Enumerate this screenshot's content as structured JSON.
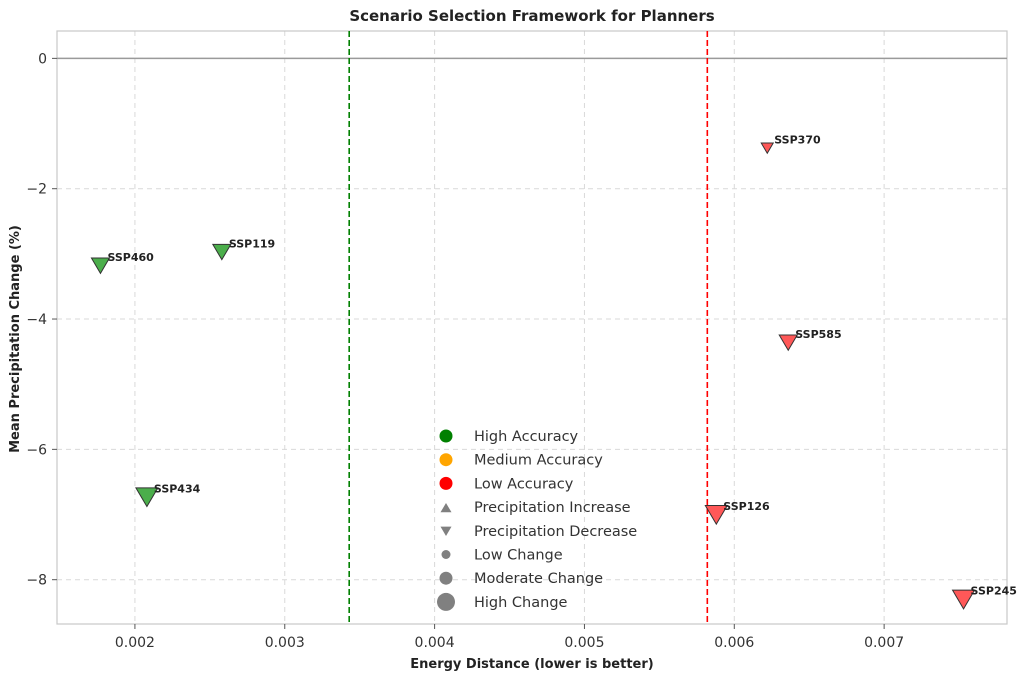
{
  "chart_data": {
    "type": "scatter",
    "title": "Scenario Selection Framework for Planners",
    "xlabel": "Energy Distance (lower is better)",
    "ylabel": "Mean Precipitation Change (%)",
    "xlim": [
      0.00148,
      0.00782
    ],
    "ylim": [
      -8.68,
      0.42
    ],
    "x_ticks": [
      0.002,
      0.003,
      0.004,
      0.005,
      0.006,
      0.007
    ],
    "x_tick_labels": [
      "0.002",
      "0.003",
      "0.004",
      "0.005",
      "0.006",
      "0.007"
    ],
    "y_ticks": [
      0,
      -2,
      -4,
      -6,
      -8
    ],
    "y_tick_labels": [
      "0",
      "−2",
      "−4",
      "−6",
      "−8"
    ],
    "grid": true,
    "zero_line": 0,
    "thresholds": [
      {
        "name": "high-accuracy-threshold",
        "x": 0.00343,
        "color": "#008000"
      },
      {
        "name": "low-accuracy-threshold",
        "x": 0.00582,
        "color": "#ff0000"
      }
    ],
    "points": [
      {
        "label": "SSP460",
        "x": 0.00177,
        "y": -3.17,
        "accuracy": "high",
        "direction": "decrease",
        "change": "moderate",
        "color": "#2ca02c"
      },
      {
        "label": "SSP119",
        "x": 0.00258,
        "y": -2.96,
        "accuracy": "high",
        "direction": "decrease",
        "change": "moderate",
        "color": "#2ca02c"
      },
      {
        "label": "SSP434",
        "x": 0.00208,
        "y": -6.72,
        "accuracy": "high",
        "direction": "decrease",
        "change": "high",
        "color": "#2ca02c"
      },
      {
        "label": "SSP370",
        "x": 0.00622,
        "y": -1.37,
        "accuracy": "low",
        "direction": "decrease",
        "change": "low",
        "color": "#ff3b3b"
      },
      {
        "label": "SSP585",
        "x": 0.00636,
        "y": -4.35,
        "accuracy": "low",
        "direction": "decrease",
        "change": "moderate",
        "color": "#ff3b3b"
      },
      {
        "label": "SSP126",
        "x": 0.00588,
        "y": -6.99,
        "accuracy": "low",
        "direction": "decrease",
        "change": "high",
        "color": "#ff3b3b"
      },
      {
        "label": "SSP245",
        "x": 0.00753,
        "y": -8.29,
        "accuracy": "low",
        "direction": "decrease",
        "change": "high",
        "color": "#ff3b3b"
      }
    ],
    "legend": {
      "placement": "lower-center",
      "entries": [
        {
          "label": "High Accuracy",
          "marker": "circle",
          "color": "#008000",
          "size": "medium"
        },
        {
          "label": "Medium Accuracy",
          "marker": "circle",
          "color": "#ffa500",
          "size": "medium"
        },
        {
          "label": "Low Accuracy",
          "marker": "circle",
          "color": "#ff0000",
          "size": "medium"
        },
        {
          "label": "Precipitation Increase",
          "marker": "triangle-up",
          "color": "#808080",
          "size": "medium"
        },
        {
          "label": "Precipitation Decrease",
          "marker": "triangle-down",
          "color": "#808080",
          "size": "medium"
        },
        {
          "label": "Low Change",
          "marker": "circle",
          "color": "#808080",
          "size": "small"
        },
        {
          "label": "Moderate Change",
          "marker": "circle",
          "color": "#808080",
          "size": "medium"
        },
        {
          "label": "High Change",
          "marker": "circle",
          "color": "#808080",
          "size": "large"
        }
      ]
    }
  }
}
